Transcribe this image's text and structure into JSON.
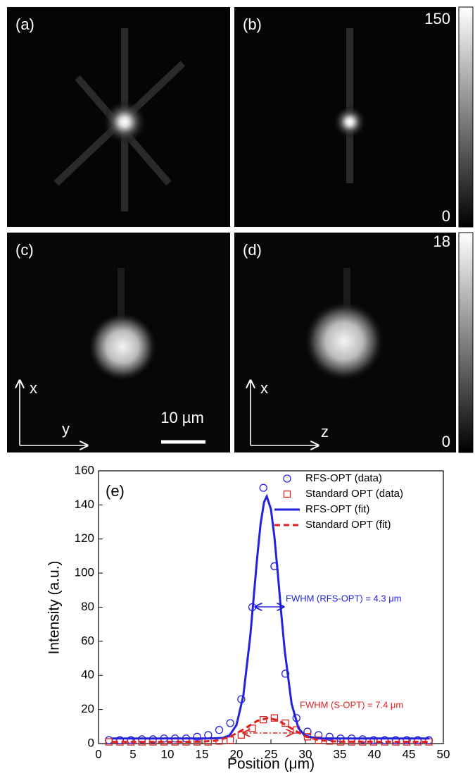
{
  "image_panels": {
    "labels": [
      "(a)",
      "(b)",
      "(c)",
      "(d)"
    ],
    "colorbar_top": {
      "max": 150,
      "min": 0
    },
    "colorbar_bottom": {
      "max": 18,
      "min": 0
    },
    "axes_c": {
      "vertical": "x",
      "horizontal": "y"
    },
    "axes_d": {
      "vertical": "x",
      "horizontal": "z"
    },
    "scale_bar": "10 µm"
  },
  "chart_data": {
    "type": "scatter",
    "panel_label": "(e)",
    "x_label": "Position (μm)",
    "y_label": "Intensity (a.u.)",
    "xlim": [
      0,
      50
    ],
    "ylim": [
      0,
      160
    ],
    "xticks": [
      0,
      5,
      10,
      15,
      20,
      25,
      30,
      35,
      40,
      45,
      50
    ],
    "yticks": [
      0,
      20,
      40,
      60,
      80,
      100,
      120,
      140,
      160
    ],
    "legend": "top-right",
    "annotations": [
      "FWHM (RFS-OPT) = 4.3 μm",
      "FWHM (S-OPT) = 7.4 μm"
    ],
    "series": [
      {
        "name": "RFS-OPT (data)",
        "color": "#2222dd",
        "marker": "circle",
        "x": [
          1.5,
          3.1,
          4.7,
          6.3,
          7.9,
          9.5,
          11.1,
          12.7,
          14.3,
          15.9,
          17.5,
          19.1,
          20.7,
          22.3,
          23.9,
          25.5,
          27.1,
          28.7,
          30.3,
          31.9,
          33.5,
          35.1,
          36.7,
          38.3,
          39.9,
          41.5,
          43.1,
          44.7,
          46.3,
          47.9
        ],
        "values": [
          2,
          2,
          2,
          2.5,
          2.5,
          3,
          3,
          3,
          4,
          5,
          8,
          12,
          26,
          80,
          150,
          104,
          41,
          15,
          7,
          5,
          4,
          3,
          3,
          2.5,
          2,
          2,
          2,
          2,
          2,
          2
        ]
      },
      {
        "name": "Standard OPT (data)",
        "color": "#dd2222",
        "marker": "square",
        "x": [
          1.5,
          3.1,
          4.7,
          6.3,
          7.9,
          9.5,
          11.1,
          12.7,
          14.3,
          15.9,
          17.5,
          19.1,
          20.7,
          22.3,
          23.9,
          25.5,
          27.1,
          28.7,
          30.3,
          31.9,
          33.5,
          35.1,
          36.7,
          38.3,
          39.9,
          41.5,
          43.1,
          44.7,
          46.3,
          47.9
        ],
        "values": [
          1,
          1,
          1,
          1,
          1,
          1,
          1,
          1,
          1,
          1,
          1.5,
          2,
          5,
          9,
          14,
          15,
          12,
          8,
          4,
          2,
          1.5,
          1,
          1,
          1,
          1,
          1,
          1,
          1,
          1,
          1
        ]
      },
      {
        "name": "RFS-OPT (fit)",
        "color": "#2222dd",
        "line_style": "solid",
        "x": [
          2,
          10,
          16,
          18,
          19,
          20,
          21,
          22,
          22.5,
          23,
          23.5,
          24,
          24.4,
          25,
          25.5,
          26,
          26.5,
          27,
          28,
          29,
          30,
          32,
          40,
          48
        ],
        "values": [
          3,
          3,
          3,
          3.3,
          4.8,
          10.8,
          28.1,
          62.9,
          85.7,
          108.8,
          128.8,
          141.6,
          145,
          137.5,
          121.5,
          99.7,
          76.3,
          54.5,
          23.3,
          9,
          4.3,
          3,
          3,
          3
        ]
      },
      {
        "name": "Standard OPT (fit)",
        "color": "#dd2222",
        "line_style": "dashed",
        "x": [
          2,
          10,
          15,
          17,
          19,
          21,
          23,
          24.6,
          26,
          28,
          30,
          32,
          35,
          48
        ],
        "values": [
          1,
          1,
          1.1,
          1.7,
          3.8,
          8.3,
          13.3,
          15,
          13.7,
          8.8,
          4.2,
          1.9,
          1.1,
          1
        ]
      }
    ]
  }
}
